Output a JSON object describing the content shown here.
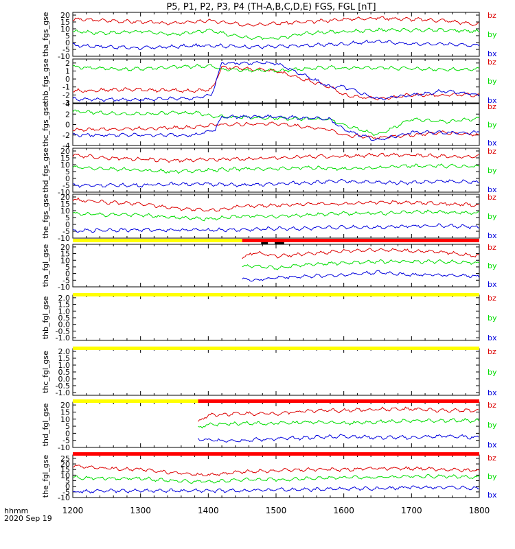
{
  "title": "P5, P1, P2, P3, P4 (TH-A,B,C,D,E) FGS, FGL [nT]",
  "footer": {
    "xunit": "hhmm",
    "date": "2020 Sep 19"
  },
  "colors": {
    "bz": "#dd0000",
    "by": "#00dd00",
    "bx": "#0000dd",
    "bar_yellow": "#ffff00",
    "bar_red": "#ff0000",
    "bar_black": "#000000",
    "axis": "#000000"
  },
  "chart_data": {
    "type": "line",
    "x_ticks": [
      "1200",
      "1300",
      "1400",
      "1500",
      "1600",
      "1700",
      "1800"
    ],
    "xlim": [
      "1200",
      "1800"
    ],
    "series_names": [
      "bz",
      "by",
      "bx"
    ],
    "panels": [
      {
        "ylabel": "tha_fgs_gse",
        "yticks": [
          "20",
          "15",
          "10",
          "5",
          "0",
          "-5",
          "-10"
        ],
        "ylim": [
          -10,
          22
        ],
        "series": [
          {
            "name": "bz",
            "x": [
              1200,
              1250,
              1300,
              1350,
              1400,
              1450,
              1500,
              1550,
              1600,
              1650,
              1700,
              1750,
              1800
            ],
            "y": [
              17,
              16,
              15,
              14,
              16,
              13,
              14,
              15,
              17,
              18,
              17,
              16,
              13
            ]
          },
          {
            "name": "by",
            "x": [
              1200,
              1250,
              1300,
              1350,
              1400,
              1450,
              1500,
              1550,
              1600,
              1650,
              1700,
              1750,
              1800
            ],
            "y": [
              8,
              7,
              8,
              6,
              9,
              4,
              3,
              7,
              8,
              9,
              9,
              9,
              8
            ]
          },
          {
            "name": "bx",
            "x": [
              1200,
              1250,
              1300,
              1350,
              1400,
              1450,
              1500,
              1550,
              1600,
              1650,
              1700,
              1750,
              1800
            ],
            "y": [
              -2,
              -3,
              -4,
              -3,
              -2,
              -3,
              -3,
              -2,
              -1,
              1,
              -1,
              -1,
              -2
            ]
          }
        ]
      },
      {
        "ylabel": "thb_fgs_gse",
        "yticks": [
          "2",
          "1",
          "0",
          "-1",
          "-2",
          "-3"
        ],
        "ylim": [
          -3,
          2.5
        ],
        "series": [
          {
            "name": "bz",
            "x": [
              1200,
              1280,
              1380,
              1405,
              1420,
              1500,
              1580,
              1600,
              1650,
              1700,
              1750,
              1800
            ],
            "y": [
              -1.5,
              -1.3,
              -1.5,
              -1.3,
              1.5,
              1.0,
              -1,
              -2,
              -2.5,
              -2,
              -2,
              -2
            ]
          },
          {
            "name": "by",
            "x": [
              1200,
              1280,
              1380,
              1405,
              1420,
              1500,
              1580,
              1600,
              1650,
              1700,
              1750,
              1800
            ],
            "y": [
              1.5,
              1.2,
              1.6,
              1.6,
              1.2,
              1.0,
              1.5,
              1.3,
              1.4,
              1.3,
              1.2,
              1.2
            ]
          },
          {
            "name": "bx",
            "x": [
              1200,
              1280,
              1380,
              1405,
              1420,
              1500,
              1580,
              1600,
              1650,
              1700,
              1750,
              1800
            ],
            "y": [
              -2.5,
              -2.6,
              -2.4,
              -2,
              2,
              2,
              -1,
              -1,
              -2.5,
              -2,
              -1.5,
              -2
            ]
          }
        ]
      },
      {
        "ylabel": "thc_fgs_gse",
        "yticks": [
          "4",
          "2",
          "0",
          "-2",
          "-4"
        ],
        "ylim": [
          -4,
          4
        ],
        "series": [
          {
            "name": "bz",
            "x": [
              1200,
              1280,
              1380,
              1410,
              1420,
              1500,
              1580,
              1600,
              1650,
              1700,
              1750,
              1800
            ],
            "y": [
              -1,
              -0.8,
              -0.5,
              0,
              0,
              0.2,
              -1,
              -2,
              -2.5,
              -2,
              -1.5,
              -2
            ]
          },
          {
            "name": "by",
            "x": [
              1200,
              1280,
              1380,
              1410,
              1420,
              1500,
              1580,
              1600,
              1650,
              1700,
              1750,
              1800
            ],
            "y": [
              2.5,
              2,
              2.3,
              1.5,
              1.5,
              1.2,
              1,
              0,
              -2,
              1,
              0.5,
              1.2
            ]
          },
          {
            "name": "bx",
            "x": [
              1200,
              1280,
              1380,
              1410,
              1420,
              1500,
              1580,
              1600,
              1650,
              1700,
              1750,
              1800
            ],
            "y": [
              -2,
              -2,
              -2,
              -1,
              1.5,
              1.5,
              1,
              -1,
              -3,
              -1.5,
              -1.5,
              -1.5
            ]
          }
        ]
      },
      {
        "ylabel": "thd_fgs_gse",
        "yticks": [
          "20",
          "15",
          "10",
          "5",
          "0",
          "-5",
          "-10"
        ],
        "ylim": [
          -10,
          22
        ],
        "series": [
          {
            "name": "bz",
            "x": [
              1200,
              1250,
              1300,
              1350,
              1400,
              1450,
              1500,
              1550,
              1600,
              1650,
              1700,
              1750,
              1800
            ],
            "y": [
              17,
              15,
              14,
              13,
              14,
              14,
              15,
              16,
              16,
              17,
              17,
              16,
              16
            ]
          },
          {
            "name": "by",
            "x": [
              1200,
              1250,
              1300,
              1350,
              1400,
              1450,
              1500,
              1550,
              1600,
              1650,
              1700,
              1750,
              1800
            ],
            "y": [
              8,
              7,
              6,
              5,
              6,
              7,
              7,
              8,
              7,
              8,
              9,
              9,
              9
            ]
          },
          {
            "name": "bx",
            "x": [
              1200,
              1250,
              1300,
              1350,
              1400,
              1450,
              1500,
              1550,
              1600,
              1650,
              1700,
              1750,
              1800
            ],
            "y": [
              -5,
              -5,
              -5,
              -4,
              -4,
              -5,
              -4,
              -3,
              -2,
              -3,
              -3,
              -2,
              -3
            ]
          }
        ]
      },
      {
        "ylabel": "the_fgs_gse",
        "yticks": [
          "20",
          "15",
          "10",
          "5",
          "0",
          "-5",
          "-10"
        ],
        "ylim": [
          -10,
          22
        ],
        "series": [
          {
            "name": "bz",
            "x": [
              1200,
              1250,
              1300,
              1350,
              1400,
              1450,
              1500,
              1550,
              1600,
              1650,
              1700,
              1750,
              1800
            ],
            "y": [
              18,
              16,
              15,
              12,
              10,
              13,
              14,
              15,
              15,
              16,
              16,
              15,
              14
            ]
          },
          {
            "name": "by",
            "x": [
              1200,
              1250,
              1300,
              1350,
              1400,
              1450,
              1500,
              1550,
              1600,
              1650,
              1700,
              1750,
              1800
            ],
            "y": [
              8,
              7,
              7,
              5,
              4,
              6,
              6,
              7,
              8,
              8,
              9,
              9,
              8
            ]
          },
          {
            "name": "bx",
            "x": [
              1200,
              1250,
              1300,
              1350,
              1400,
              1450,
              1500,
              1550,
              1600,
              1650,
              1700,
              1750,
              1800
            ],
            "y": [
              -5,
              -4,
              -4,
              -4,
              -4,
              -4,
              -3,
              -3,
              -2,
              -2,
              -1,
              -1,
              -2
            ]
          }
        ]
      },
      {
        "ylabel": "tha_fgl_gse",
        "yticks": [
          "20",
          "15",
          "10",
          "5",
          "0",
          "-5",
          "-10"
        ],
        "ylim": [
          -10,
          22
        ],
        "series": [
          {
            "name": "bz",
            "x": [
              1450,
              1470,
              1500,
              1550,
              1600,
              1650,
              1700,
              1750,
              1800
            ],
            "y": [
              12,
              16,
              13,
              15,
              17,
              18,
              17,
              16,
              13
            ]
          },
          {
            "name": "by",
            "x": [
              1450,
              1470,
              1500,
              1550,
              1600,
              1650,
              1700,
              1750,
              1800
            ],
            "y": [
              5,
              6,
              4,
              7,
              8,
              9,
              9,
              9,
              8
            ]
          },
          {
            "name": "bx",
            "x": [
              1450,
              1470,
              1500,
              1550,
              1600,
              1650,
              1700,
              1750,
              1800
            ],
            "y": [
              -4,
              -5,
              -3,
              -2,
              -1,
              1,
              -1,
              -1,
              -2
            ]
          }
        ]
      },
      {
        "ylabel": "thb_fgl_gse",
        "yticks": [
          "2.0",
          "1.5",
          "1.0",
          "0.5",
          "0.0",
          "-0.5",
          "-1.0"
        ],
        "ylim": [
          -1.2,
          2.2
        ],
        "series": []
      },
      {
        "ylabel": "thc_fgl_gse",
        "yticks": [
          "2.0",
          "1.5",
          "1.0",
          "0.5",
          "0.0",
          "-0.5",
          "-1.0"
        ],
        "ylim": [
          -1.2,
          2.2
        ],
        "series": []
      },
      {
        "ylabel": "thd_fgl_gse",
        "yticks": [
          "20",
          "15",
          "10",
          "5",
          "0",
          "-5",
          "-10"
        ],
        "ylim": [
          -10,
          22
        ],
        "series": [
          {
            "name": "bz",
            "x": [
              1385,
              1400,
              1450,
              1500,
              1550,
              1600,
              1650,
              1700,
              1750,
              1800
            ],
            "y": [
              8,
              13,
              14,
              14,
              16,
              16,
              17,
              17,
              16,
              16
            ]
          },
          {
            "name": "by",
            "x": [
              1385,
              1400,
              1450,
              1500,
              1550,
              1600,
              1650,
              1700,
              1750,
              1800
            ],
            "y": [
              4,
              6,
              7,
              7,
              8,
              7,
              8,
              9,
              9,
              9
            ]
          },
          {
            "name": "bx",
            "x": [
              1385,
              1400,
              1450,
              1500,
              1550,
              1600,
              1650,
              1700,
              1750,
              1800
            ],
            "y": [
              -4,
              -5,
              -5,
              -4,
              -3,
              -2,
              -3,
              -3,
              -2,
              -3
            ]
          }
        ]
      },
      {
        "ylabel": "the_fgl_gse",
        "yticks": [
          "25",
          "20",
          "15",
          "10",
          "5",
          "0",
          "-5",
          "-10"
        ],
        "ylim": [
          -10,
          28
        ],
        "series": [
          {
            "name": "bz",
            "x": [
              1200,
              1250,
              1300,
              1350,
              1400,
              1450,
              1500,
              1550,
              1600,
              1650,
              1700,
              1750,
              1800
            ],
            "y": [
              18,
              16,
              15,
              12,
              10,
              13,
              14,
              15,
              15,
              16,
              16,
              15,
              14
            ]
          },
          {
            "name": "by",
            "x": [
              1200,
              1250,
              1300,
              1350,
              1400,
              1450,
              1500,
              1550,
              1600,
              1650,
              1700,
              1750,
              1800
            ],
            "y": [
              8,
              7,
              7,
              5,
              4,
              6,
              6,
              7,
              8,
              8,
              9,
              9,
              8
            ]
          },
          {
            "name": "bx",
            "x": [
              1200,
              1250,
              1300,
              1350,
              1400,
              1450,
              1500,
              1550,
              1600,
              1650,
              1700,
              1750,
              1800
            ],
            "y": [
              -5,
              -4,
              -4,
              -4,
              -4,
              -4,
              -3,
              -3,
              -2,
              -2,
              -1,
              -1,
              -2
            ]
          }
        ]
      }
    ],
    "status_bars": [
      {
        "before_panel": 5,
        "segments": [
          {
            "from": 1200,
            "to": 1450,
            "color": "yellow"
          },
          {
            "from": 1450,
            "to": 1800,
            "color": "red"
          }
        ],
        "marks": [
          [
            1478,
            1488
          ],
          [
            1498,
            1512
          ]
        ]
      },
      {
        "before_panel": 6,
        "segments": [
          {
            "from": 1200,
            "to": 1800,
            "color": "yellow"
          }
        ],
        "marks": []
      },
      {
        "before_panel": 7,
        "segments": [
          {
            "from": 1200,
            "to": 1800,
            "color": "yellow"
          }
        ],
        "marks": []
      },
      {
        "before_panel": 8,
        "segments": [
          {
            "from": 1200,
            "to": 1385,
            "color": "yellow"
          },
          {
            "from": 1385,
            "to": 1800,
            "color": "red"
          }
        ],
        "marks": []
      },
      {
        "before_panel": 9,
        "segments": [
          {
            "from": 1200,
            "to": 1800,
            "color": "red"
          }
        ],
        "marks": []
      }
    ]
  }
}
